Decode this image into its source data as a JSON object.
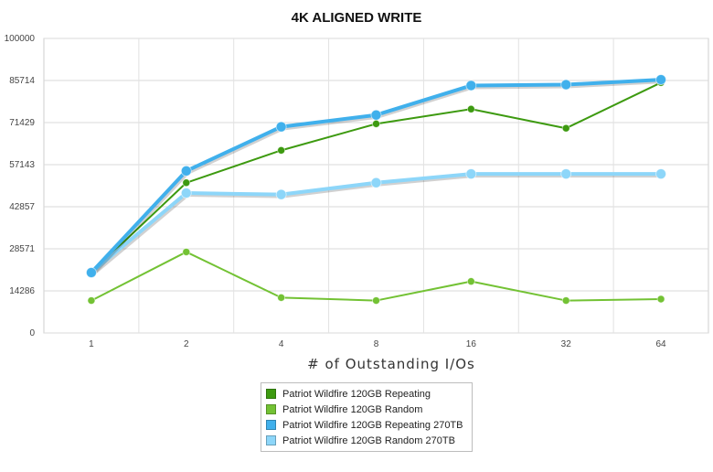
{
  "chart_data": {
    "type": "line",
    "title": "4K ALIGNED WRITE",
    "xlabel": "# of Outstanding I/Os",
    "ylabel": "",
    "categories": [
      "1",
      "2",
      "4",
      "8",
      "16",
      "32",
      "64"
    ],
    "ylim": [
      0,
      100000
    ],
    "yticks": [
      "0",
      "14286",
      "28571",
      "42857",
      "57143",
      "71429",
      "85714",
      "100000"
    ],
    "grid": true,
    "legend_position": "bottom",
    "series": [
      {
        "name": "Patriot Wildfire 120GB Repeating",
        "color": "#3d9a10",
        "values": [
          20500,
          51000,
          62000,
          71000,
          76000,
          69500,
          85000
        ]
      },
      {
        "name": "Patriot Wildfire 120GB Random",
        "color": "#73c234",
        "values": [
          11000,
          27500,
          12000,
          11000,
          17500,
          11000,
          11500
        ]
      },
      {
        "name": "Patriot Wildfire 120GB Repeating 270TB",
        "color": "#40b0ec",
        "values": [
          20500,
          55000,
          70000,
          74000,
          84000,
          84300,
          86000
        ]
      },
      {
        "name": "Patriot Wildfire 120GB Random 270TB",
        "color": "#8dd6f9",
        "values": [
          20500,
          47500,
          47000,
          51000,
          54000,
          54000,
          54000
        ]
      }
    ]
  }
}
